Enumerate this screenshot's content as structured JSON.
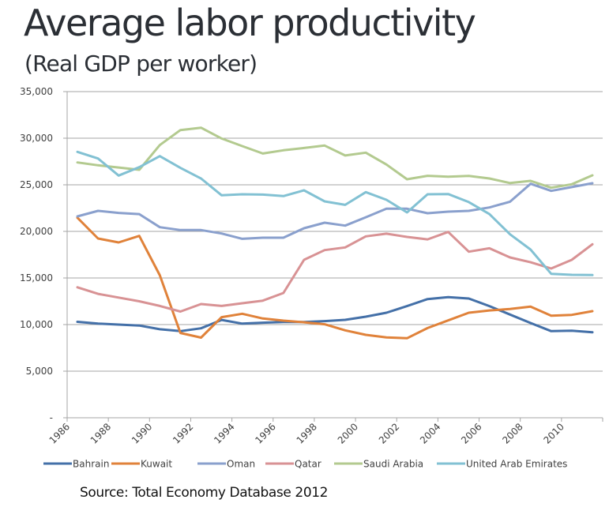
{
  "slide": {
    "title": "Average labor productivity",
    "subtitle": "(Real GDP per worker)",
    "source": "Source: Total Economy Database 2012"
  },
  "chart_data": {
    "type": "line",
    "title": "",
    "xlabel": "",
    "ylabel": "",
    "ylim": [
      0,
      35000
    ],
    "yticks": [
      0,
      5000,
      10000,
      15000,
      20000,
      25000,
      30000,
      35000
    ],
    "ytick_labels": [
      "-",
      "5,000",
      "10,000",
      "15,000",
      "20,000",
      "25,000",
      "30,000",
      "35,000"
    ],
    "x": [
      1986,
      1987,
      1988,
      1989,
      1990,
      1991,
      1992,
      1993,
      1994,
      1995,
      1996,
      1997,
      1998,
      1999,
      2000,
      2001,
      2002,
      2003,
      2004,
      2005,
      2006,
      2007,
      2008,
      2009,
      2010,
      2011
    ],
    "xtick_labels": [
      "1986",
      "1988",
      "1990",
      "1992",
      "1994",
      "1996",
      "1998",
      "2000",
      "2002",
      "2004",
      "2006",
      "2008",
      "2010"
    ],
    "grid": "horizontal",
    "legend_position": "bottom",
    "series": [
      {
        "name": "Bahrain",
        "color": "#4470a8",
        "values": [
          10300,
          10100,
          10000,
          9900,
          9500,
          9300,
          9600,
          10500,
          10100,
          10200,
          10280,
          10280,
          10370,
          10510,
          10850,
          11270,
          11980,
          12740,
          12940,
          12800,
          11980,
          11080,
          10170,
          9300,
          9350,
          9180
        ]
      },
      {
        "name": "Kuwait",
        "color": "#e0823a",
        "values": [
          21470,
          19240,
          18810,
          19520,
          15300,
          9100,
          8600,
          10800,
          11160,
          10650,
          10420,
          10250,
          10030,
          9380,
          8900,
          8620,
          8530,
          9630,
          10450,
          11270,
          11520,
          11670,
          11920,
          10960,
          11040,
          11440
        ]
      },
      {
        "name": "Oman",
        "color": "#8aa0cd",
        "values": [
          21610,
          22200,
          21980,
          21860,
          20450,
          20140,
          20140,
          19770,
          19200,
          19320,
          19320,
          20340,
          20930,
          20620,
          21520,
          22430,
          22430,
          21950,
          22120,
          22200,
          22570,
          23190,
          25110,
          24350,
          24750,
          25170
        ]
      },
      {
        "name": "Qatar",
        "color": "#d89294",
        "values": [
          14000,
          13300,
          12900,
          12500,
          12000,
          11400,
          12200,
          12000,
          12290,
          12570,
          13390,
          16950,
          17990,
          18280,
          19470,
          19750,
          19410,
          19140,
          19940,
          17820,
          18190,
          17200,
          16690,
          16020,
          16950,
          18620
        ]
      },
      {
        "name": "Saudi Arabia",
        "color": "#b3ca8f",
        "values": [
          27400,
          27090,
          26860,
          26610,
          29260,
          30870,
          31130,
          29970,
          29150,
          28360,
          28700,
          28950,
          29210,
          28140,
          28450,
          27180,
          25590,
          25970,
          25870,
          25960,
          25680,
          25190,
          25420,
          24690,
          25060,
          26020
        ]
      },
      {
        "name": "United Arab Emirates",
        "color": "#82c1d3",
        "values": [
          28530,
          27820,
          25990,
          26890,
          28080,
          26810,
          25680,
          23870,
          23980,
          23950,
          23790,
          24410,
          23220,
          22850,
          24210,
          23390,
          22030,
          23980,
          24010,
          23140,
          21860,
          19690,
          18050,
          15450,
          15340,
          15310
        ]
      }
    ]
  }
}
